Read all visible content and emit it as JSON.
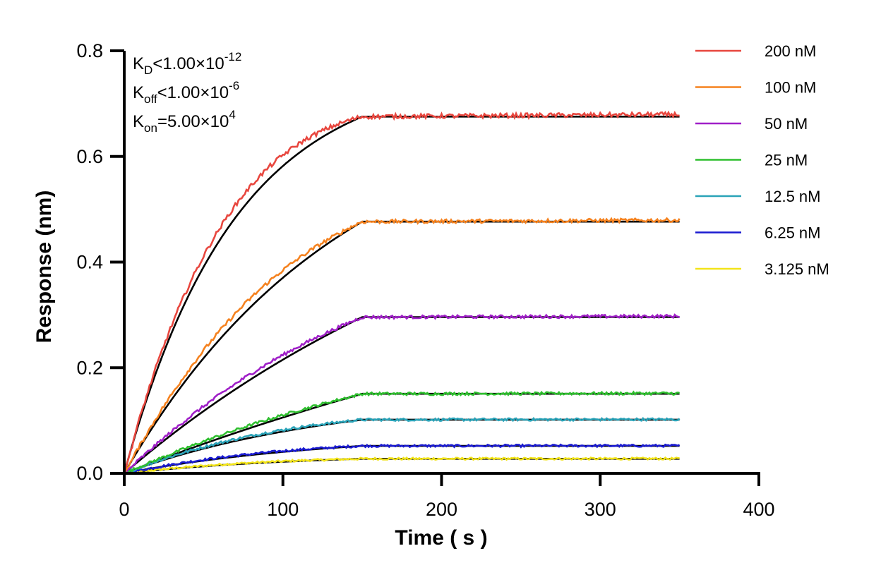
{
  "chart_data": {
    "type": "line",
    "xlabel": "Time ( s )",
    "ylabel": "Response (nm)",
    "xlim": [
      0,
      400
    ],
    "ylim": [
      0,
      0.8
    ],
    "xticks": [
      0,
      100,
      200,
      300,
      400
    ],
    "xtick_labels": [
      "0",
      "100",
      "200",
      "300",
      "400"
    ],
    "yticks": [
      0,
      0.2,
      0.4,
      0.6,
      0.8
    ],
    "ytick_labels": [
      "0.0",
      "0.2",
      "0.4",
      "0.6",
      "0.8"
    ],
    "grid": false,
    "legend_position": "right",
    "association_end": 150,
    "x_end": 350,
    "annotations": [
      {
        "main": "K",
        "sub": "D",
        "rest": "<1.00×10",
        "sup": "-12"
      },
      {
        "main": "K",
        "sub": "off",
        "rest": "<1.00×10",
        "sup": "-6"
      },
      {
        "main": "K",
        "sub": "on",
        "rest": "=5.00×10",
        "sup": "4"
      }
    ],
    "series": [
      {
        "name": "200 nM",
        "color": "#e8473f",
        "kobs": 0.0143,
        "plateau": 0.6754,
        "noise": 0.0042
      },
      {
        "name": "100 nM",
        "color": "#f5821f",
        "kobs": 0.0072,
        "plateau": 0.4765,
        "noise": 0.0035
      },
      {
        "name": "50 nM",
        "color": "#a020c8",
        "kobs": 0.0038,
        "plateau": 0.2958,
        "noise": 0.003
      },
      {
        "name": "25 nM",
        "color": "#2fbf2f",
        "kobs": 0.0022,
        "plateau": 0.1506,
        "noise": 0.0026
      },
      {
        "name": "12.5 nM",
        "color": "#2aa3b8",
        "kobs": 0.0074,
        "plateau": 0.1016,
        "noise": 0.0024
      },
      {
        "name": "6.25 nM",
        "color": "#1a1ad0",
        "kobs": 0.0076,
        "plateau": 0.052,
        "noise": 0.0022
      },
      {
        "name": "3.125 nM",
        "color": "#f2e41a",
        "kobs": 0.0087,
        "plateau": 0.0277,
        "noise": 0.002
      }
    ],
    "fit_color": "#000000"
  }
}
